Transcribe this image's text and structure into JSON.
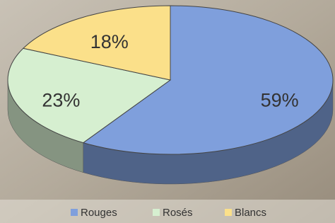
{
  "chart_data": {
    "type": "pie",
    "categories": [
      "Rouges",
      "Rosés",
      "Blancs"
    ],
    "values": [
      59,
      23,
      18
    ],
    "value_labels": [
      "59%",
      "23%",
      "18%"
    ],
    "colors": [
      "#7f9fdc",
      "#d6efd0",
      "#fbe08a"
    ],
    "legend": "bottom"
  }
}
